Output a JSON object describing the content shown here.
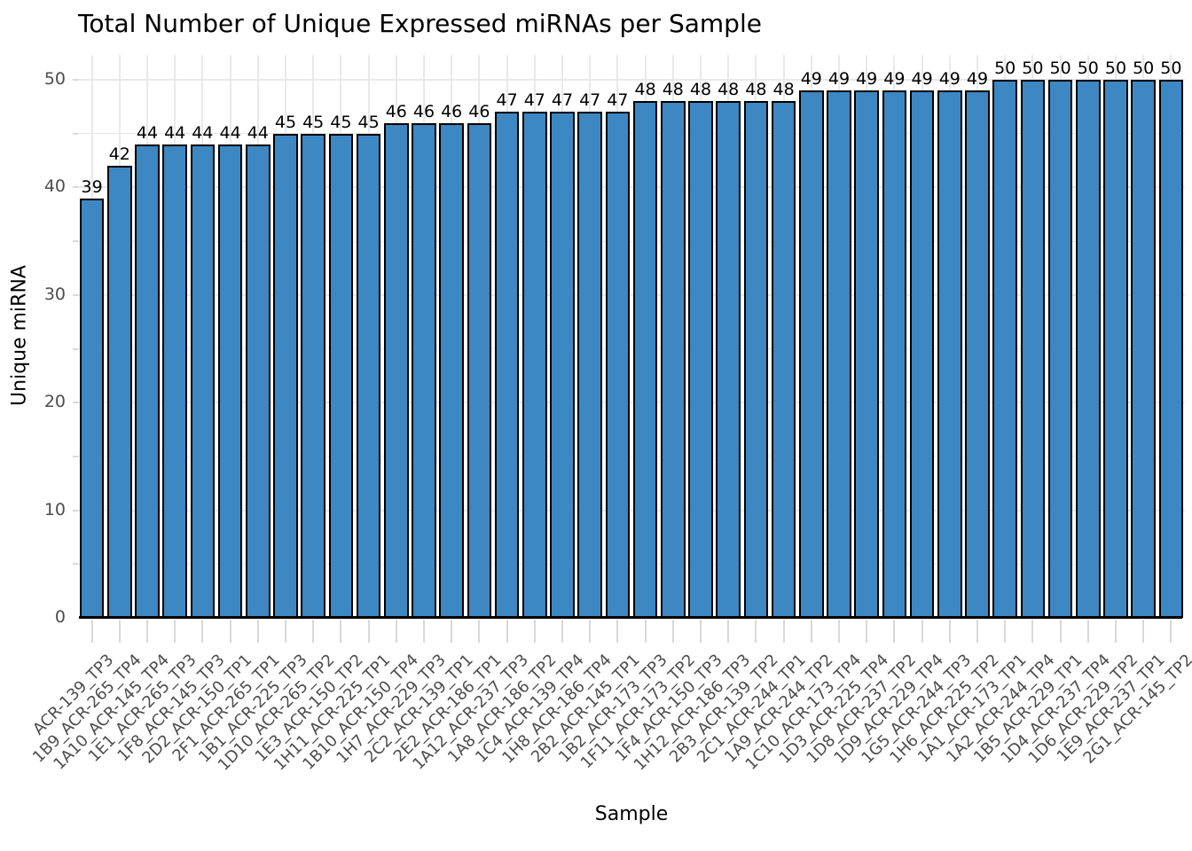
{
  "chart_data": {
    "type": "bar",
    "title": "Total Number of Unique Expressed miRNAs per Sample",
    "xlabel": "Sample",
    "ylabel": "Unique miRNA",
    "categories": [
      "ACR-139_TP3",
      "1B9_ACR-265_TP4",
      "1A10_ACR-145_TP4",
      "1E1_ACR-265_TP3",
      "1F8_ACR-145_TP3",
      "2D2_ACR-150_TP1",
      "2F1_ACR-265_TP1",
      "1B1_ACR-225_TP3",
      "1D10_ACR-265_TP2",
      "1E3_ACR-150_TP2",
      "1H11_ACR-225_TP1",
      "1B10_ACR-150_TP4",
      "1H7_ACR-229_TP3",
      "2C2_ACR-139_TP1",
      "2E2_ACR-186_TP1",
      "1A12_ACR-237_TP3",
      "1A8_ACR-186_TP2",
      "1C4_ACR-139_TP4",
      "1H8_ACR-186_TP4",
      "2B2_ACR-145_TP1",
      "1B2_ACR-173_TP3",
      "1F11_ACR-173_TP2",
      "1F4_ACR-150_TP3",
      "1H12_ACR-186_TP3",
      "2B3_ACR-139_TP2",
      "2C1_ACR-244_TP1",
      "1A9_ACR-244_TP2",
      "1C10_ACR-173_TP4",
      "1D3_ACR-225_TP4",
      "1D8_ACR-237_TP2",
      "1D9_ACR-229_TP4",
      "1G5_ACR-244_TP3",
      "1H6_ACR-225_TP2",
      "1A1_ACR-173_TP1",
      "1A2_ACR-244_TP4",
      "1B5_ACR-229_TP1",
      "1D4_ACR-237_TP4",
      "1D6_ACR-229_TP2",
      "1E9_ACR-237_TP1",
      "2G1_ACR-145_TP2"
    ],
    "values": [
      39,
      42,
      44,
      44,
      44,
      44,
      44,
      45,
      45,
      45,
      45,
      46,
      46,
      46,
      46,
      47,
      47,
      47,
      47,
      47,
      48,
      48,
      48,
      48,
      48,
      48,
      49,
      49,
      49,
      49,
      49,
      49,
      49,
      50,
      50,
      50,
      50,
      50,
      50,
      50
    ],
    "value_labels_shown": true,
    "ytick_labels": [
      "0",
      "10",
      "20",
      "30",
      "40",
      "50"
    ],
    "yticks": [
      0,
      10,
      20,
      30,
      40,
      50
    ],
    "ylim": [
      0,
      52.3
    ],
    "grid": "on",
    "legend": "none",
    "colors": {
      "bar_fill": "#3d87c2",
      "bar_border": "#000000",
      "gridline": "#e8e8e8",
      "tick_mark": "#d9d9d9",
      "axis_text": "#4d4d4d",
      "title_text": "#000000",
      "background": "#ffffff"
    }
  }
}
